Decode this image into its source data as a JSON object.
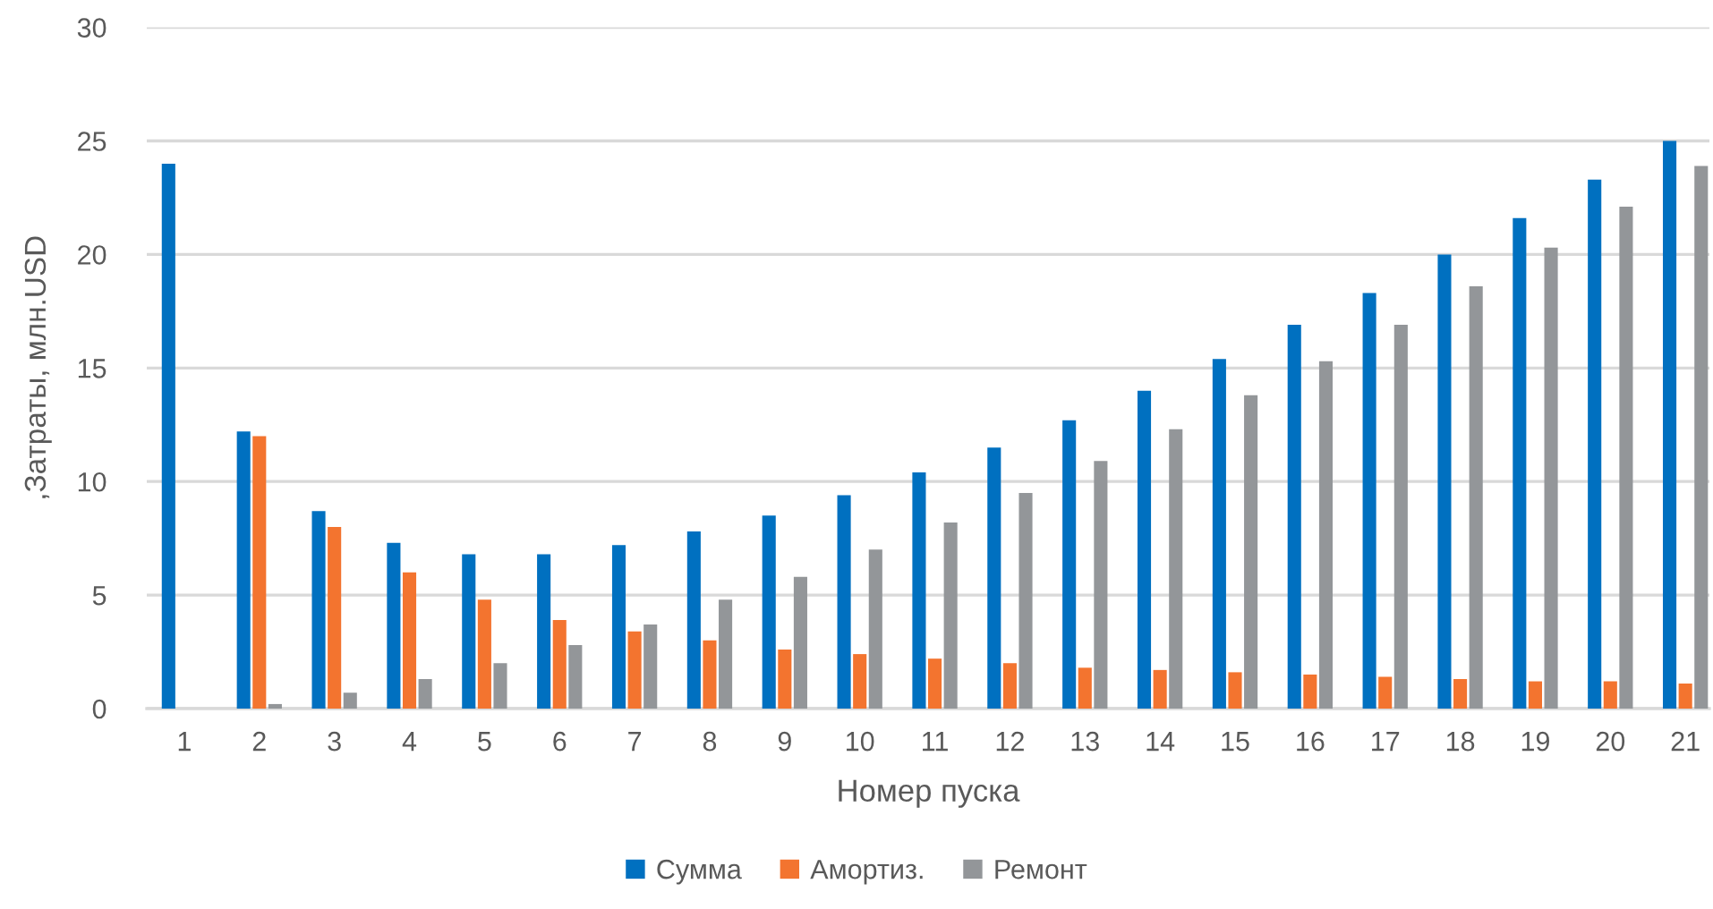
{
  "chart_data": {
    "type": "bar",
    "xlabel": "Номер пуска",
    "ylabel": ",Затраты, млн.USD",
    "categories": [
      "1",
      "2",
      "3",
      "4",
      "5",
      "6",
      "7",
      "8",
      "9",
      "10",
      "11",
      "12",
      "13",
      "14",
      "15",
      "16",
      "17",
      "18",
      "19",
      "20",
      "21"
    ],
    "series": [
      {
        "name": "Сумма",
        "color": "#0070c0",
        "values": [
          24.0,
          12.2,
          8.7,
          7.3,
          6.8,
          6.8,
          7.2,
          7.8,
          8.5,
          9.4,
          10.4,
          11.5,
          12.7,
          14.0,
          15.4,
          16.9,
          18.3,
          20.0,
          21.6,
          23.3,
          25.0
        ]
      },
      {
        "name": "Амортиз.",
        "color": "#f3742f",
        "values": [
          null,
          12.0,
          8.0,
          6.0,
          4.8,
          3.9,
          3.4,
          3.0,
          2.6,
          2.4,
          2.2,
          2.0,
          1.8,
          1.7,
          1.6,
          1.5,
          1.4,
          1.3,
          1.2,
          1.2,
          1.1
        ]
      },
      {
        "name": "Ремонт",
        "color": "#939699",
        "values": [
          null,
          0.2,
          0.7,
          1.3,
          2.0,
          2.8,
          3.7,
          4.8,
          5.8,
          7.0,
          8.2,
          9.5,
          10.9,
          12.3,
          13.8,
          15.3,
          16.9,
          18.6,
          20.3,
          22.1,
          23.9
        ]
      }
    ],
    "ylim": [
      0,
      30
    ],
    "yticks": [
      0,
      5,
      10,
      15,
      20,
      25,
      30
    ],
    "grid": "y",
    "legend": "bottom"
  }
}
